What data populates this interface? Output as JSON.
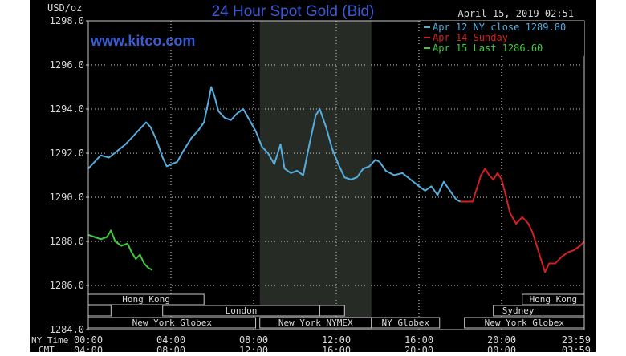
{
  "colors": {
    "background": "#000000",
    "frame": "#c8c8c8",
    "text": "#d8d8d8",
    "title": "#3a5bd6",
    "watermark": "#3a5bd6",
    "shade": "#262b26",
    "grid": "#d0d0d0",
    "series_apr12": "#55aee0",
    "series_apr14": "#d42020",
    "series_apr15": "#3ccc3c"
  },
  "chart_data": {
    "type": "line",
    "title": "24 Hour Spot Gold (Bid)",
    "watermark": "www.kitco.com",
    "timestamp": "April 15, 2019 02:51",
    "unit_label": "USD/oz",
    "ylim": [
      1284.0,
      1298.0
    ],
    "y_ticks": [
      "1298.0",
      "1296.0",
      "1294.0",
      "1292.0",
      "1290.0",
      "1288.0",
      "1286.0",
      "1284.0"
    ],
    "xlim": [
      0,
      24
    ],
    "x_row_label_1": "NY Time",
    "x_row_label_2": "GMT",
    "x_tick_labels": [
      {
        "hour": 0,
        "ny": "00:00",
        "gmt": "04:00"
      },
      {
        "hour": 4,
        "ny": "04:00",
        "gmt": "08:00"
      },
      {
        "hour": 8,
        "ny": "08:00",
        "gmt": "12:00"
      },
      {
        "hour": 12,
        "ny": "12:00",
        "gmt": "16:00"
      },
      {
        "hour": 16,
        "ny": "16:00",
        "gmt": "20:00"
      },
      {
        "hour": 20,
        "ny": "20:00",
        "gmt": "00:00"
      },
      {
        "hour": 23.98,
        "ny": "23:59",
        "gmt": "03:59"
      }
    ],
    "shaded_range": [
      8.3,
      13.7
    ],
    "sessions": [
      {
        "label": "Hong Kong",
        "start": 0,
        "end": 5.6,
        "row": 0
      },
      {
        "label": "",
        "start": 0,
        "end": 1.1,
        "row": 1
      },
      {
        "label": "London",
        "start": 3.6,
        "end": 11.2,
        "row": 1
      },
      {
        "label": "",
        "start": 11.2,
        "end": 12.4,
        "row": 1
      },
      {
        "label": "New York Globex",
        "start": 0,
        "end": 8.1,
        "row": 2
      },
      {
        "label": "New York NYMEX",
        "start": 8.3,
        "end": 13.7,
        "row": 2
      },
      {
        "label": "NY Globex",
        "start": 13.7,
        "end": 17.0,
        "row": 2
      },
      {
        "label": "Hong Kong",
        "start": 21.0,
        "end": 24.0,
        "row": 0
      },
      {
        "label": "Sydney",
        "start": 19.6,
        "end": 22.0,
        "row": 1
      },
      {
        "label": "",
        "start": 22.0,
        "end": 24.0,
        "row": 1
      },
      {
        "label": "New York Globex",
        "start": 18.2,
        "end": 24.0,
        "row": 2
      }
    ],
    "legend_position": "top-right",
    "series": [
      {
        "name": "Apr 12 NY close 1289.80",
        "color_key": "series_apr12",
        "points": [
          [
            0.0,
            1291.3
          ],
          [
            0.3,
            1291.6
          ],
          [
            0.6,
            1291.9
          ],
          [
            1.0,
            1291.8
          ],
          [
            1.4,
            1292.1
          ],
          [
            1.8,
            1292.4
          ],
          [
            2.2,
            1292.8
          ],
          [
            2.6,
            1293.2
          ],
          [
            2.8,
            1293.4
          ],
          [
            3.0,
            1293.2
          ],
          [
            3.3,
            1292.6
          ],
          [
            3.6,
            1291.8
          ],
          [
            3.8,
            1291.4
          ],
          [
            4.0,
            1291.5
          ],
          [
            4.3,
            1291.6
          ],
          [
            4.6,
            1292.1
          ],
          [
            5.0,
            1292.7
          ],
          [
            5.3,
            1293.0
          ],
          [
            5.6,
            1293.4
          ],
          [
            5.8,
            1294.3
          ],
          [
            5.95,
            1295.0
          ],
          [
            6.1,
            1294.6
          ],
          [
            6.3,
            1293.9
          ],
          [
            6.6,
            1293.6
          ],
          [
            6.9,
            1293.5
          ],
          [
            7.2,
            1293.8
          ],
          [
            7.5,
            1294.0
          ],
          [
            7.8,
            1293.5
          ],
          [
            8.1,
            1293.0
          ],
          [
            8.4,
            1292.3
          ],
          [
            8.7,
            1292.0
          ],
          [
            9.0,
            1291.5
          ],
          [
            9.3,
            1292.4
          ],
          [
            9.5,
            1291.3
          ],
          [
            9.8,
            1291.1
          ],
          [
            10.1,
            1291.2
          ],
          [
            10.4,
            1291.0
          ],
          [
            10.7,
            1292.4
          ],
          [
            11.0,
            1293.7
          ],
          [
            11.2,
            1294.0
          ],
          [
            11.5,
            1293.2
          ],
          [
            11.8,
            1292.2
          ],
          [
            12.1,
            1291.5
          ],
          [
            12.4,
            1290.9
          ],
          [
            12.7,
            1290.8
          ],
          [
            13.0,
            1290.9
          ],
          [
            13.3,
            1291.3
          ],
          [
            13.6,
            1291.4
          ],
          [
            13.9,
            1291.7
          ],
          [
            14.1,
            1291.6
          ],
          [
            14.4,
            1291.2
          ],
          [
            14.8,
            1291.0
          ],
          [
            15.2,
            1291.1
          ],
          [
            15.6,
            1290.8
          ],
          [
            16.0,
            1290.5
          ],
          [
            16.3,
            1290.3
          ],
          [
            16.6,
            1290.5
          ],
          [
            16.9,
            1290.1
          ],
          [
            17.2,
            1290.7
          ],
          [
            17.5,
            1290.3
          ],
          [
            17.8,
            1289.9
          ],
          [
            18.0,
            1289.8
          ]
        ]
      },
      {
        "name": "Apr 14 Sunday",
        "color_key": "series_apr14",
        "points": [
          [
            18.0,
            1289.8
          ],
          [
            18.6,
            1289.8
          ],
          [
            18.8,
            1290.4
          ],
          [
            19.0,
            1291.0
          ],
          [
            19.2,
            1291.3
          ],
          [
            19.4,
            1291.0
          ],
          [
            19.6,
            1290.8
          ],
          [
            19.8,
            1291.1
          ],
          [
            20.0,
            1290.8
          ],
          [
            20.2,
            1290.1
          ],
          [
            20.4,
            1289.3
          ],
          [
            20.7,
            1288.8
          ],
          [
            21.0,
            1289.1
          ],
          [
            21.3,
            1288.8
          ],
          [
            21.5,
            1288.4
          ],
          [
            21.7,
            1287.8
          ],
          [
            21.9,
            1287.2
          ],
          [
            22.1,
            1286.6
          ],
          [
            22.3,
            1287.0
          ],
          [
            22.6,
            1287.0
          ],
          [
            22.9,
            1287.3
          ],
          [
            23.2,
            1287.5
          ],
          [
            23.5,
            1287.6
          ],
          [
            23.8,
            1287.8
          ],
          [
            24.0,
            1288.0
          ]
        ]
      },
      {
        "name": "Apr 15 Last 1286.60",
        "color_key": "series_apr15",
        "points": [
          [
            0.0,
            1288.3
          ],
          [
            0.3,
            1288.2
          ],
          [
            0.6,
            1288.1
          ],
          [
            0.9,
            1288.2
          ],
          [
            1.1,
            1288.5
          ],
          [
            1.3,
            1288.0
          ],
          [
            1.6,
            1287.8
          ],
          [
            1.9,
            1287.9
          ],
          [
            2.1,
            1287.5
          ],
          [
            2.3,
            1287.2
          ],
          [
            2.5,
            1287.4
          ],
          [
            2.7,
            1287.0
          ],
          [
            2.9,
            1286.8
          ],
          [
            3.1,
            1286.7
          ]
        ]
      }
    ]
  }
}
